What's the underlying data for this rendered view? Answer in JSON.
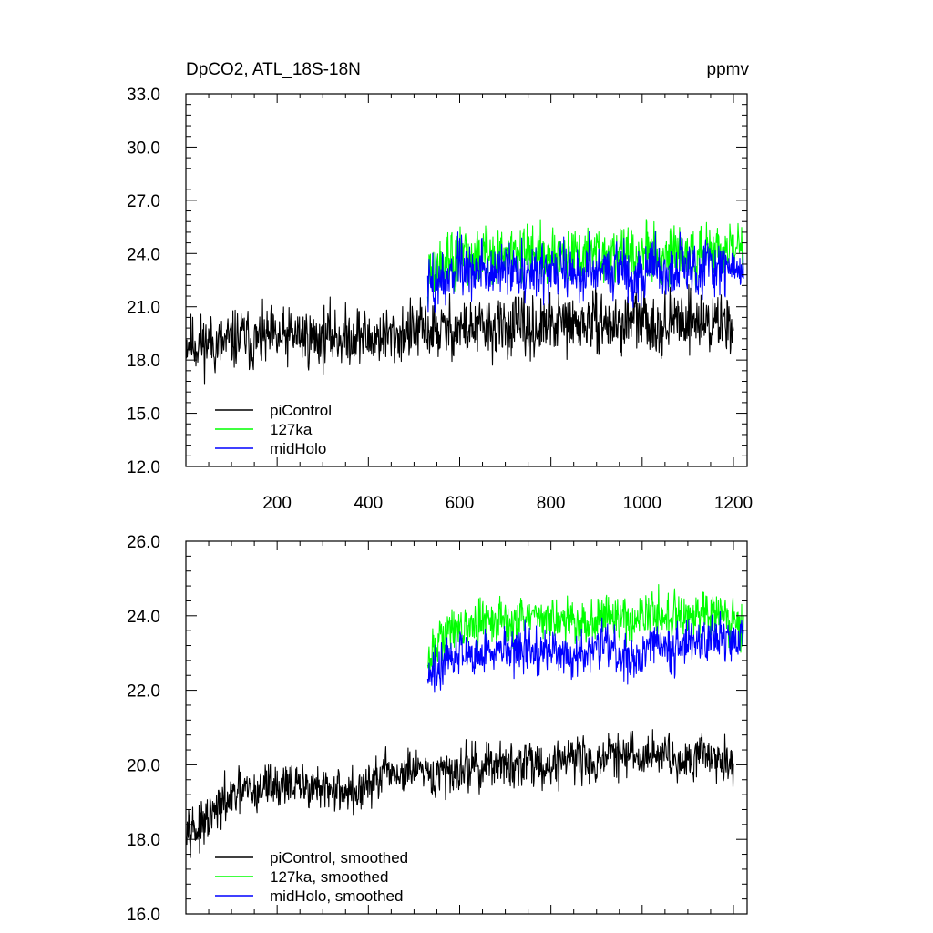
{
  "chart_data": [
    {
      "type": "line",
      "title": "DpCO2, ATL_18S-18N",
      "units": "ppmv",
      "xlim": [
        0,
        1230
      ],
      "ylim": [
        12.0,
        33.0
      ],
      "xticks": [
        200,
        400,
        600,
        800,
        1000,
        1200
      ],
      "xtick_labels": [
        "200",
        "400",
        "600",
        "800",
        "1000",
        "1200"
      ],
      "yticks": [
        12.0,
        15.0,
        18.0,
        21.0,
        24.0,
        27.0,
        30.0,
        33.0
      ],
      "ytick_labels": [
        "12.0",
        "15.0",
        "18.0",
        "21.0",
        "24.0",
        "27.0",
        "30.0",
        "33.0"
      ],
      "legend_position": "bottom-left",
      "series": [
        {
          "name": "piControl",
          "color": "#000000",
          "x_start": 1,
          "x_end": 1200,
          "step": 25,
          "values": [
            19.1,
            18.9,
            19.0,
            18.8,
            19.1,
            19.3,
            19.0,
            19.2,
            19.1,
            19.3,
            19.4,
            19.2,
            19.3,
            19.4,
            19.2,
            19.5,
            19.1,
            19.4,
            19.3,
            19.5,
            19.6,
            19.7,
            19.6,
            19.7,
            19.8,
            19.7,
            19.8,
            19.7,
            19.8,
            19.9,
            19.7,
            19.8,
            20.0,
            20.1,
            19.9,
            20.0,
            20.2,
            20.0,
            19.9,
            20.3,
            20.2,
            20.1,
            19.9,
            20.3,
            20.4,
            20.1,
            20.0,
            20.2
          ],
          "noise": 1.5
        },
        {
          "name": "127ka",
          "color": "#00ff00",
          "x_start": 530,
          "x_end": 1222,
          "step": 25,
          "values": [
            22.5,
            23.2,
            23.5,
            23.8,
            23.6,
            24.0,
            23.7,
            23.9,
            23.8,
            24.1,
            23.8,
            24.0,
            23.9,
            23.7,
            23.8,
            24.0,
            24.1,
            23.9,
            23.8,
            24.0,
            24.2,
            23.9,
            23.9,
            24.1,
            24.0,
            24.1,
            24.0,
            24.1
          ],
          "noise": 1.5
        },
        {
          "name": "midHolo",
          "color": "#0000ff",
          "x_start": 530,
          "x_end": 1222,
          "step": 25,
          "values": [
            22.0,
            22.6,
            22.9,
            23.1,
            22.8,
            23.2,
            22.9,
            23.1,
            23.0,
            23.3,
            23.0,
            23.1,
            23.0,
            22.9,
            23.0,
            23.2,
            23.2,
            23.0,
            22.9,
            23.1,
            23.3,
            23.0,
            23.1,
            23.3,
            23.2,
            23.3,
            23.2,
            23.3
          ],
          "noise": 1.5
        }
      ]
    },
    {
      "type": "line",
      "title": "",
      "xlim": [
        0,
        1230
      ],
      "ylim": [
        16.0,
        26.0
      ],
      "xticks": [
        200,
        400,
        600,
        800,
        1000,
        1200
      ],
      "yticks": [
        16.0,
        18.0,
        20.0,
        22.0,
        24.0,
        26.0
      ],
      "ytick_labels": [
        "16.0",
        "18.0",
        "20.0",
        "22.0",
        "24.0",
        "26.0"
      ],
      "legend_position": "bottom-left",
      "series": [
        {
          "name": "piControl, smoothed",
          "color": "#000000",
          "x_start": 1,
          "x_end": 1200,
          "step": 25,
          "values": [
            18.6,
            18.2,
            18.5,
            18.9,
            19.1,
            19.3,
            19.2,
            19.5,
            19.4,
            19.6,
            19.3,
            19.5,
            19.2,
            19.4,
            19.3,
            19.2,
            19.5,
            19.6,
            19.8,
            19.7,
            19.9,
            19.6,
            19.7,
            19.8,
            19.9,
            20.0,
            19.9,
            20.1,
            19.9,
            20.0,
            20.2,
            20.0,
            19.9,
            20.2,
            20.3,
            20.1,
            20.0,
            20.3,
            20.2,
            20.3,
            20.1,
            20.4,
            20.3,
            20.1,
            20.2,
            20.4,
            20.2,
            20.1
          ],
          "noise": 0.55
        },
        {
          "name": "127ka, smoothed",
          "color": "#00ff00",
          "x_start": 530,
          "x_end": 1222,
          "step": 25,
          "values": [
            22.6,
            23.4,
            23.6,
            23.8,
            23.6,
            24.0,
            23.7,
            23.9,
            23.8,
            24.0,
            23.8,
            24.0,
            23.9,
            23.7,
            23.8,
            24.0,
            24.1,
            23.9,
            23.8,
            24.0,
            24.2,
            23.9,
            23.9,
            24.1,
            24.0,
            24.2,
            24.0,
            23.8
          ],
          "noise": 0.55
        },
        {
          "name": "midHolo, smoothed",
          "color": "#0000ff",
          "x_start": 530,
          "x_end": 1222,
          "step": 25,
          "values": [
            22.2,
            22.7,
            22.9,
            23.1,
            22.9,
            23.2,
            23.0,
            23.1,
            23.0,
            23.2,
            23.0,
            23.1,
            23.0,
            22.9,
            23.0,
            23.2,
            23.2,
            23.0,
            22.9,
            23.1,
            23.3,
            23.0,
            23.1,
            23.3,
            23.3,
            23.5,
            23.4,
            23.3
          ],
          "noise": 0.55
        }
      ]
    }
  ]
}
